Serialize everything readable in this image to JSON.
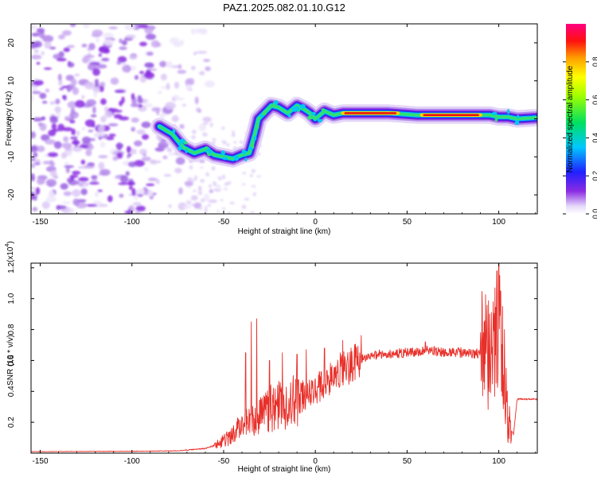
{
  "title": "PAZ1.2025.082.01.10.G12",
  "colors": {
    "snr_line": "#e8302a",
    "frame": "#000000",
    "background": "#ffffff"
  },
  "colorbar": {
    "label": "Normalized spectral amplitude",
    "ticks": [
      "0.0",
      "0.2",
      "0.4",
      "0.6",
      "0.8"
    ],
    "tick_values": [
      0.0,
      0.2,
      0.4,
      0.6,
      0.8
    ],
    "range": [
      0,
      1
    ],
    "colormap": "rainbow (white-violet-blue-cyan-green-yellow-red-magenta)"
  },
  "chart_data": [
    {
      "type": "heatmap",
      "name": "spectrogram",
      "xlabel": "Height of straight line (km)",
      "ylabel": "Frequency (Hz)",
      "xlim": [
        -155,
        121
      ],
      "ylim": [
        -25,
        25
      ],
      "xticks": [
        -150,
        -100,
        -50,
        0,
        50,
        100
      ],
      "xtick_labels": [
        "-150",
        "-100",
        "-50",
        "0",
        "50",
        "100"
      ],
      "yticks": [
        -20,
        -10,
        0,
        10,
        20
      ],
      "ytick_labels": [
        "-20",
        "-10",
        "0",
        "10",
        "20"
      ],
      "ridge": {
        "x": [
          -85,
          -78,
          -72,
          -66,
          -60,
          -55,
          -50,
          -45,
          -40,
          -36,
          -33,
          -31,
          -28,
          -24,
          -20,
          -15,
          -10,
          -6,
          -3,
          0,
          5,
          10,
          15,
          25,
          40,
          55,
          70,
          85,
          95,
          100,
          105,
          110,
          120
        ],
        "y": [
          -2,
          -4,
          -7.5,
          -9,
          -8,
          -9.5,
          -10,
          -10.5,
          -9.5,
          -9,
          -4,
          0,
          1.5,
          3.5,
          3,
          1.5,
          3.5,
          2.5,
          1.5,
          0,
          2,
          1,
          1.5,
          1.5,
          1.5,
          1,
          1,
          1,
          1,
          0.5,
          0.5,
          0,
          0.3
        ],
        "peak_x": [
          15,
          90
        ],
        "peak_amplitude": 0.95
      },
      "noise_region_x": [
        -155,
        -70
      ]
    },
    {
      "type": "line",
      "name": "snr",
      "xlabel": "Height of straight line (km)",
      "ylabel": "SNR (10 * v/v)",
      "scale_label": "(x10",
      "scale_exp": "4",
      "xlim": [
        -155,
        121
      ],
      "ylim": [
        0,
        12300
      ],
      "xticks": [
        -150,
        -100,
        -50,
        0,
        50,
        100
      ],
      "xtick_labels": [
        "-150",
        "-100",
        "-50",
        "0",
        "50",
        "100"
      ],
      "yticks": [
        2000,
        4000,
        6000,
        8000,
        10000,
        12000
      ],
      "ytick_labels": [
        "0.2",
        "0.4",
        "0.6",
        "0.8",
        "1.0",
        "1.2"
      ],
      "envelope": {
        "x": [
          -155,
          -100,
          -75,
          -60,
          -55,
          -50,
          -45,
          -40,
          -35,
          -30,
          -25,
          -20,
          -15,
          -10,
          -5,
          0,
          5,
          10,
          15,
          20,
          25,
          30,
          40,
          50,
          60,
          70,
          80,
          90,
          95,
          100,
          103,
          105,
          108,
          110,
          115,
          121
        ],
        "y": [
          100,
          120,
          150,
          300,
          500,
          800,
          1300,
          1800,
          2200,
          2600,
          2900,
          3100,
          3300,
          3600,
          3900,
          4200,
          4600,
          5000,
          5400,
          5800,
          6100,
          6300,
          6400,
          6500,
          6600,
          6550,
          6500,
          6400,
          6300,
          6000,
          4000,
          2000,
          1200,
          3500,
          3500,
          3500
        ]
      },
      "spikes": {
        "x": [
          -38,
          -35,
          -32,
          -25,
          -18,
          -10,
          -5,
          5,
          15,
          60,
          90,
          92,
          95,
          97,
          98,
          99,
          100,
          100.5,
          101,
          102,
          103,
          104
        ],
        "y": [
          6500,
          8500,
          8700,
          6000,
          6500,
          6400,
          6700,
          6800,
          7300,
          7200,
          7800,
          8500,
          9000,
          9800,
          10700,
          11800,
          12300,
          11500,
          10500,
          9500,
          8000,
          5500
        ]
      }
    }
  ]
}
